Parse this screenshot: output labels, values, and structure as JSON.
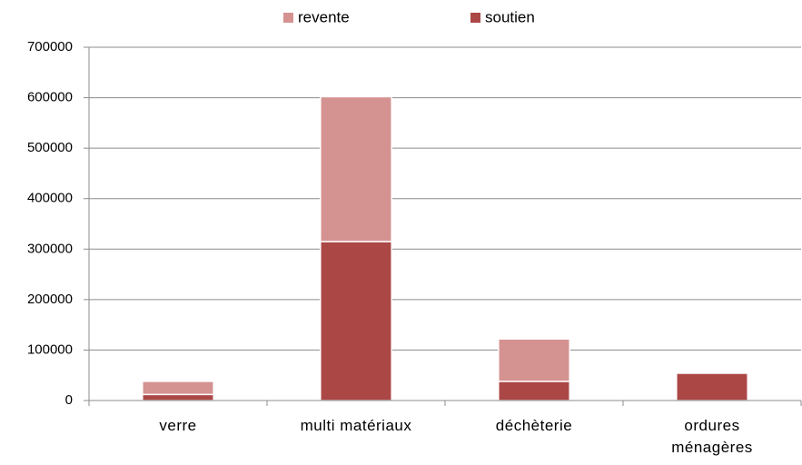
{
  "chart_data": {
    "type": "stacked_bar",
    "categories": [
      "verre",
      "multi matériaux",
      "déchèterie",
      "ordures ménagères"
    ],
    "series": [
      {
        "name": "soutien",
        "color": "#ab4745",
        "values": [
          12000,
          315000,
          38000,
          54000
        ]
      },
      {
        "name": "revente",
        "color": "#d49291",
        "values": [
          26000,
          287000,
          84000,
          0
        ]
      }
    ],
    "ylim": [
      0,
      700000
    ],
    "yticks": [
      0,
      100000,
      200000,
      300000,
      400000,
      500000,
      600000,
      700000
    ],
    "grid": true,
    "legend": "top"
  }
}
